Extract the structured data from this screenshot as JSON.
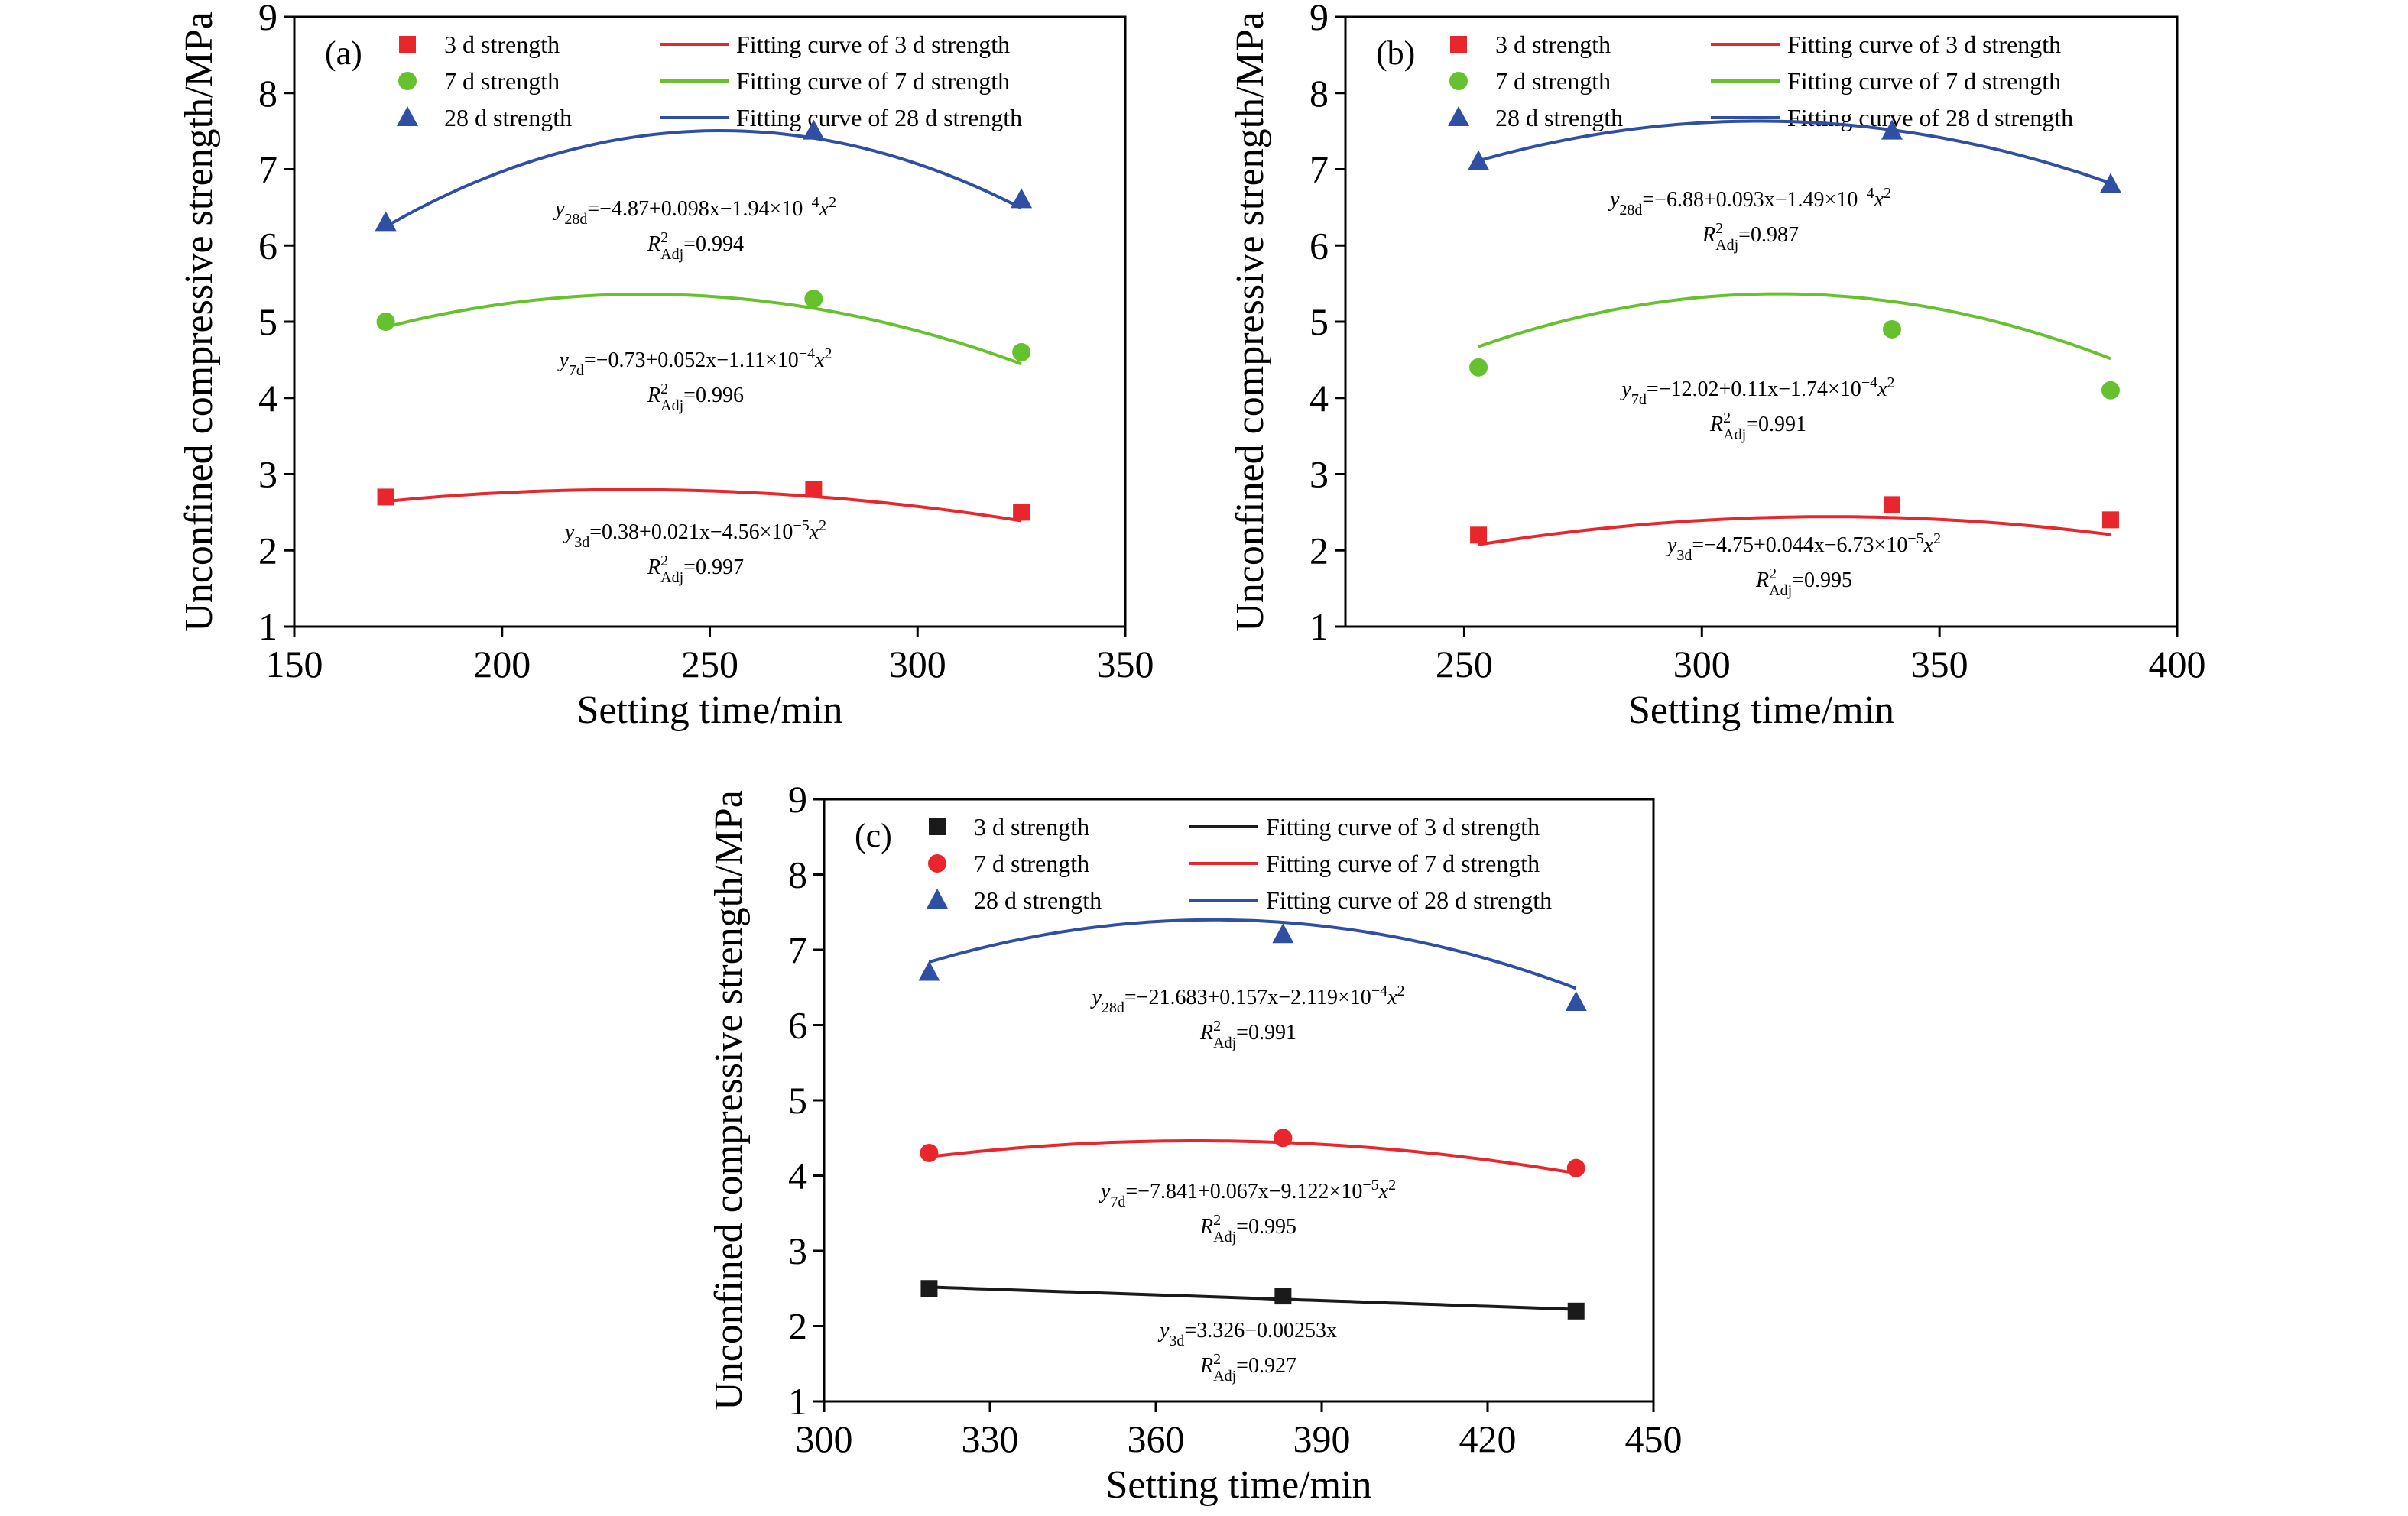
{
  "chart_data": [
    {
      "type": "scatter",
      "panel_label": "(a)",
      "xlabel": "Setting time/min",
      "ylabel": "Unconfined compressive strength/MPa",
      "xlim": [
        150,
        350
      ],
      "ylim": [
        1,
        9
      ],
      "xticks": [
        150,
        200,
        250,
        300,
        350
      ],
      "yticks": [
        1,
        2,
        3,
        4,
        5,
        6,
        7,
        8,
        9
      ],
      "legend_position": "top",
      "series": [
        {
          "name": "3 d strength",
          "fit_name": "Fitting curve of 3 d strength",
          "color": "#e8262b",
          "marker": "square",
          "x": [
            172,
            275,
            325
          ],
          "y": [
            2.7,
            2.8,
            2.5
          ],
          "fit": {
            "degree": 2,
            "coef": [
              0.38,
              0.021,
              -4.56e-05
            ]
          },
          "eq": {
            "subscript": "3d",
            "rhs": "=0.38+0.021x−4.56×10",
            "exp": "−5",
            "tail": "x",
            "tail_exp": "2",
            "r2": "=0.997"
          }
        },
        {
          "name": "7 d strength",
          "fit_name": "Fitting curve of 7 d strength",
          "color": "#66c12e",
          "marker": "circle",
          "x": [
            172,
            275,
            325
          ],
          "y": [
            5.0,
            5.3,
            4.6
          ],
          "fit": {
            "degree": 2,
            "coef": [
              -0.73,
              0.052,
              -0.000111
            ]
          },
          "eq": {
            "subscript": "7d",
            "rhs": "=−0.73+0.052x−1.11×10",
            "exp": "−4",
            "tail": "x",
            "tail_exp": "2",
            "r2": "=0.996"
          }
        },
        {
          "name": "28 d strength",
          "fit_name": "Fitting curve of 28 d strength",
          "color": "#2f4fa2",
          "marker": "triangle",
          "x": [
            172,
            275,
            325
          ],
          "y": [
            6.3,
            7.5,
            6.6
          ],
          "fit": {
            "degree": 2,
            "coef": [
              -4.87,
              0.098,
              -0.000194
            ]
          },
          "eq": {
            "subscript": "28d",
            "rhs": "=−4.87+0.098x−1.94×10",
            "exp": "−4",
            "tail": "x",
            "tail_exp": "2",
            "r2": "=0.994"
          }
        }
      ]
    },
    {
      "type": "scatter",
      "panel_label": "(b)",
      "xlabel": "Setting time/min",
      "ylabel": "Unconfined compressive strength/MPa",
      "xlim": [
        225,
        400
      ],
      "ylim": [
        1,
        9
      ],
      "xticks": [
        250,
        300,
        350,
        400
      ],
      "yticks": [
        1,
        2,
        3,
        4,
        5,
        6,
        7,
        8,
        9
      ],
      "legend_position": "top",
      "series": [
        {
          "name": "3 d strength",
          "fit_name": "Fitting curve of 3 d strength",
          "color": "#e8262b",
          "marker": "square",
          "x": [
            253,
            340,
            386
          ],
          "y": [
            2.2,
            2.6,
            2.4
          ],
          "fit": {
            "degree": 2,
            "coef": [
              -4.75,
              0.044,
              -6.73e-05
            ]
          },
          "eq": {
            "subscript": "3d",
            "rhs": "=−4.75+0.044x−6.73×10",
            "exp": "−5",
            "tail": "x",
            "tail_exp": "2",
            "r2": "=0.995"
          }
        },
        {
          "name": "7 d strength",
          "fit_name": "Fitting curve of 7 d strength",
          "color": "#66c12e",
          "marker": "circle",
          "x": [
            253,
            340,
            386
          ],
          "y": [
            4.4,
            4.9,
            4.1
          ],
          "fit": {
            "degree": 2,
            "coef": [
              -12.02,
              0.11,
              -0.000174
            ]
          },
          "eq": {
            "subscript": "7d",
            "rhs": "=−12.02+0.11x−1.74×10",
            "exp": "−4",
            "tail": "x",
            "tail_exp": "2",
            "r2": "=0.991"
          }
        },
        {
          "name": "28 d strength",
          "fit_name": "Fitting curve of 28 d strength",
          "color": "#2f4fa2",
          "marker": "triangle",
          "x": [
            253,
            340,
            386
          ],
          "y": [
            7.1,
            7.5,
            6.8
          ],
          "fit": {
            "degree": 2,
            "coef": [
              -6.88,
              0.093,
              -0.000149
            ]
          },
          "eq": {
            "subscript": "28d",
            "rhs": "=−6.88+0.093x−1.49×10",
            "exp": "−4",
            "tail": "x",
            "tail_exp": "2",
            "r2": "=0.987"
          }
        }
      ]
    },
    {
      "type": "scatter",
      "panel_label": "(c)",
      "xlabel": "Setting time/min",
      "ylabel": "Unconfined compressive strength/MPa",
      "xlim": [
        300,
        450
      ],
      "ylim": [
        1,
        9
      ],
      "xticks": [
        300,
        330,
        360,
        390,
        420,
        450
      ],
      "yticks": [
        1,
        2,
        3,
        4,
        5,
        6,
        7,
        8,
        9
      ],
      "legend_position": "top",
      "series": [
        {
          "name": "3 d strength",
          "fit_name": "Fitting curve of 3 d strength",
          "color": "#1a1a1a",
          "marker": "square",
          "x": [
            319,
            383,
            436
          ],
          "y": [
            2.5,
            2.4,
            2.2
          ],
          "fit": {
            "degree": 1,
            "coef": [
              3.326,
              -0.00253
            ]
          },
          "eq": {
            "subscript": "3d",
            "rhs": "=3.326−0.00253x",
            "exp": "",
            "tail": "",
            "tail_exp": "",
            "r2": "=0.927"
          }
        },
        {
          "name": "7 d strength",
          "fit_name": "Fitting curve of 7 d strength",
          "color": "#e8262b",
          "marker": "circle",
          "x": [
            319,
            383,
            436
          ],
          "y": [
            4.3,
            4.5,
            4.1
          ],
          "fit": {
            "degree": 2,
            "coef": [
              -7.841,
              0.067,
              -9.122e-05
            ]
          },
          "eq": {
            "subscript": "7d",
            "rhs": "=−7.841+0.067x−9.122×10",
            "exp": "−5",
            "tail": "x",
            "tail_exp": "2",
            "r2": "=0.995"
          }
        },
        {
          "name": "28 d strength",
          "fit_name": "Fitting curve of 28 d strength",
          "color": "#2f4fa2",
          "marker": "triangle",
          "x": [
            319,
            383,
            436
          ],
          "y": [
            6.7,
            7.2,
            6.3
          ],
          "fit": {
            "degree": 2,
            "coef": [
              -21.683,
              0.157,
              -0.0002119
            ]
          },
          "eq": {
            "subscript": "28d",
            "rhs": "=−21.683+0.157x−2.119×10",
            "exp": "−4",
            "tail": "x",
            "tail_exp": "2",
            "r2": "=0.991"
          }
        }
      ]
    }
  ]
}
